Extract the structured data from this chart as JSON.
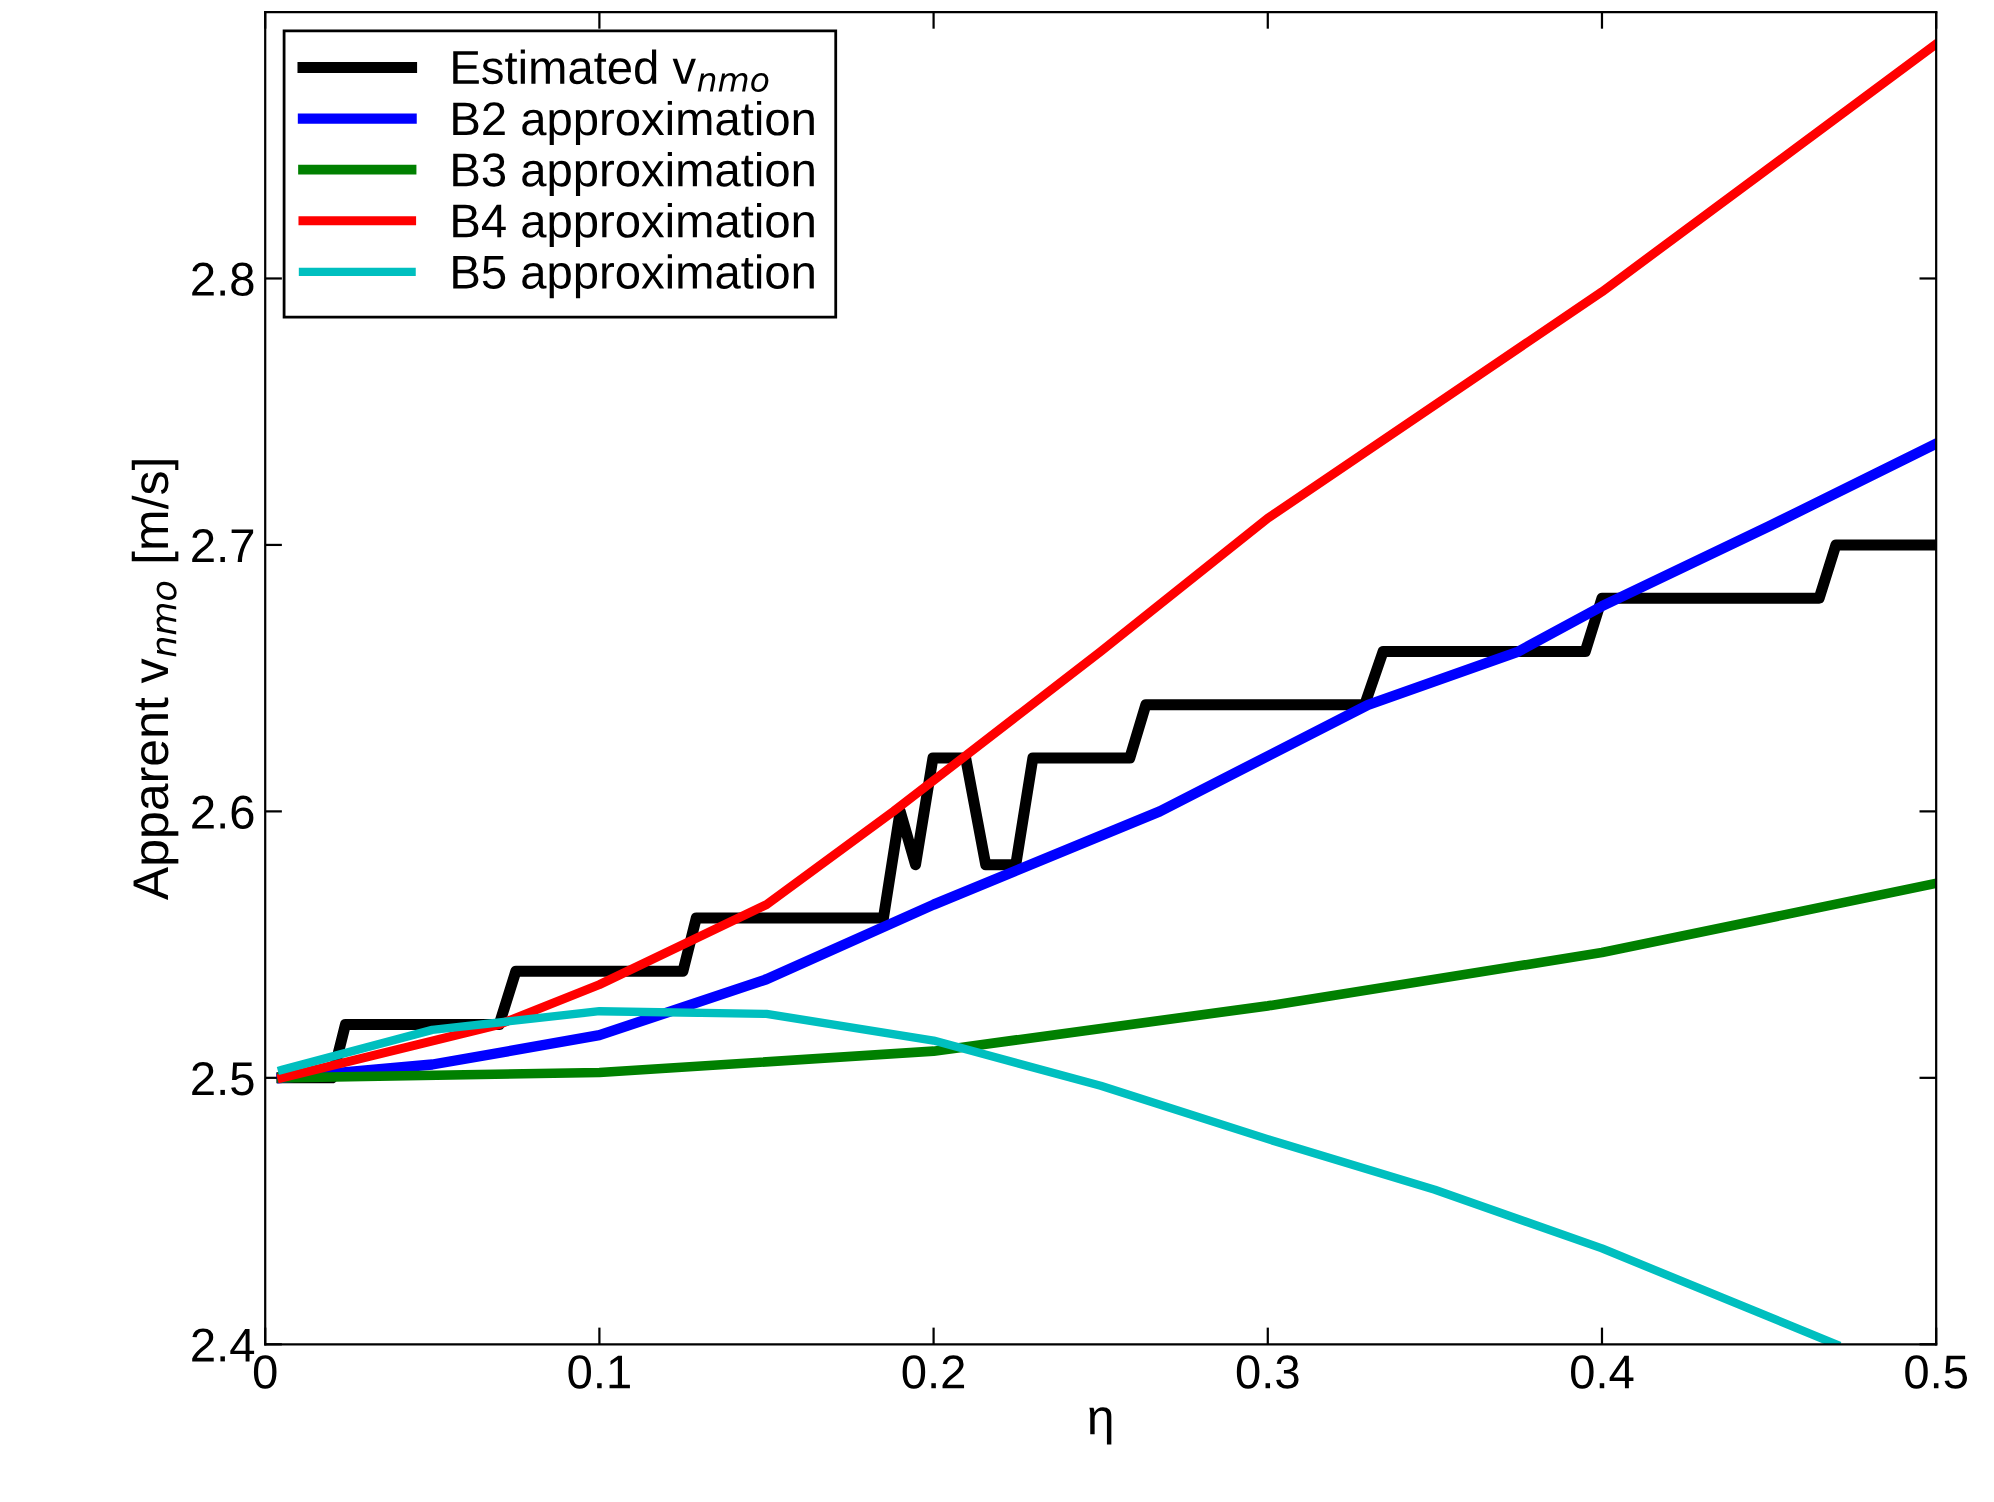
{
  "chart_data": {
    "type": "line",
    "xlabel": "η",
    "ylabel": "Apparent v$_{nmo}$ [m/s]",
    "xlim": [
      0,
      0.5
    ],
    "ylim": [
      2.4,
      2.9
    ],
    "xticks": [
      0,
      0.1,
      0.2,
      0.3,
      0.4,
      0.5
    ],
    "yticks": [
      2.4,
      2.5,
      2.6,
      2.7,
      2.8
    ],
    "grid": false,
    "legend": "top left",
    "marker": "none",
    "line_style": "solid",
    "series": [
      {
        "name": "Estimated v$_{nmo}$",
        "color": "#000000",
        "x": [
          0.005,
          0.02,
          0.024,
          0.07,
          0.075,
          0.125,
          0.129,
          0.185,
          0.19,
          0.1946,
          0.1998,
          0.2096,
          0.2156,
          0.2246,
          0.2297,
          0.2587,
          0.2635,
          0.329,
          0.3345,
          0.395,
          0.4,
          0.465,
          0.47,
          0.5
        ],
        "values": [
          2.5,
          2.5,
          2.52,
          2.52,
          2.54,
          2.54,
          2.56,
          2.56,
          2.6,
          2.58,
          2.62,
          2.62,
          2.58,
          2.58,
          2.62,
          2.62,
          2.64,
          2.64,
          2.66,
          2.66,
          2.68,
          2.68,
          2.7,
          2.7
        ]
      },
      {
        "name": "B2 approximation",
        "color": "#0000ff",
        "x": [
          0.005,
          0.05,
          0.1,
          0.15,
          0.2,
          0.2677,
          0.33,
          0.375,
          0.4,
          0.45,
          0.5
        ],
        "values": [
          2.5,
          2.505,
          2.516,
          2.537,
          2.565,
          2.6,
          2.64,
          2.66,
          2.677,
          2.707,
          2.738
        ]
      },
      {
        "name": "B3 approximation",
        "color": "#008000",
        "x": [
          0.005,
          0.1,
          0.2,
          0.3,
          0.4,
          0.5
        ],
        "values": [
          2.5,
          2.502,
          2.51,
          2.527,
          2.547,
          2.573
        ]
      },
      {
        "name": "B4 approximation",
        "color": "#ff0000",
        "x": [
          0.005,
          0.07,
          0.1,
          0.15,
          0.188,
          0.25,
          0.3,
          0.4,
          0.5
        ],
        "values": [
          2.5,
          2.52,
          2.535,
          2.565,
          2.6,
          2.66,
          2.71,
          2.795,
          2.888
        ]
      },
      {
        "name": "B5 approximation",
        "color": "#00bfbf",
        "x": [
          0.005,
          0.05,
          0.1,
          0.15,
          0.2,
          0.25,
          0.3,
          0.35,
          0.4,
          0.47
        ],
        "values": [
          2.503,
          2.518,
          2.525,
          2.524,
          2.514,
          2.497,
          2.477,
          2.458,
          2.436,
          2.4
        ]
      }
    ]
  }
}
